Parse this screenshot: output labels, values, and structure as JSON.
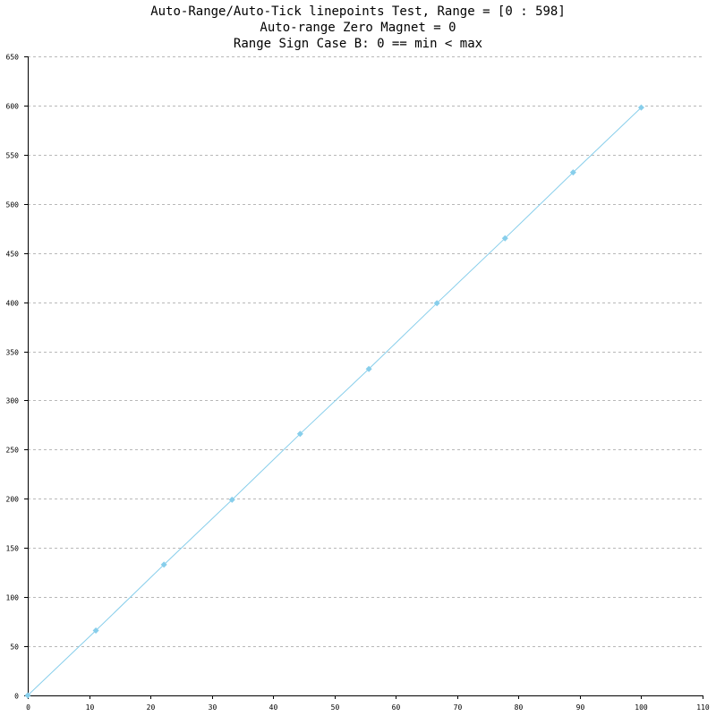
{
  "chart_data": {
    "type": "line",
    "title_lines": [
      "Auto-Range/Auto-Tick linepoints Test, Range = [0 : 598]",
      "Auto-range Zero Magnet = 0",
      "Range Sign Case B: 0 == min < max"
    ],
    "xlabel": "",
    "ylabel": "",
    "xlim": [
      0,
      110
    ],
    "ylim": [
      0,
      650
    ],
    "x_ticks": [
      0,
      10,
      20,
      30,
      40,
      50,
      60,
      70,
      80,
      90,
      100,
      110
    ],
    "y_ticks": [
      0,
      50,
      100,
      150,
      200,
      250,
      300,
      350,
      400,
      450,
      500,
      550,
      600,
      650
    ],
    "grid": "horizontal-dashed",
    "series": [
      {
        "color": "#87ceeb",
        "marker": "diamond",
        "x": [
          0,
          11.1,
          22.2,
          33.3,
          44.4,
          55.6,
          66.7,
          77.8,
          88.9,
          100
        ],
        "y": [
          0,
          66,
          133,
          199,
          266,
          332,
          399,
          465,
          532,
          598
        ]
      }
    ]
  }
}
